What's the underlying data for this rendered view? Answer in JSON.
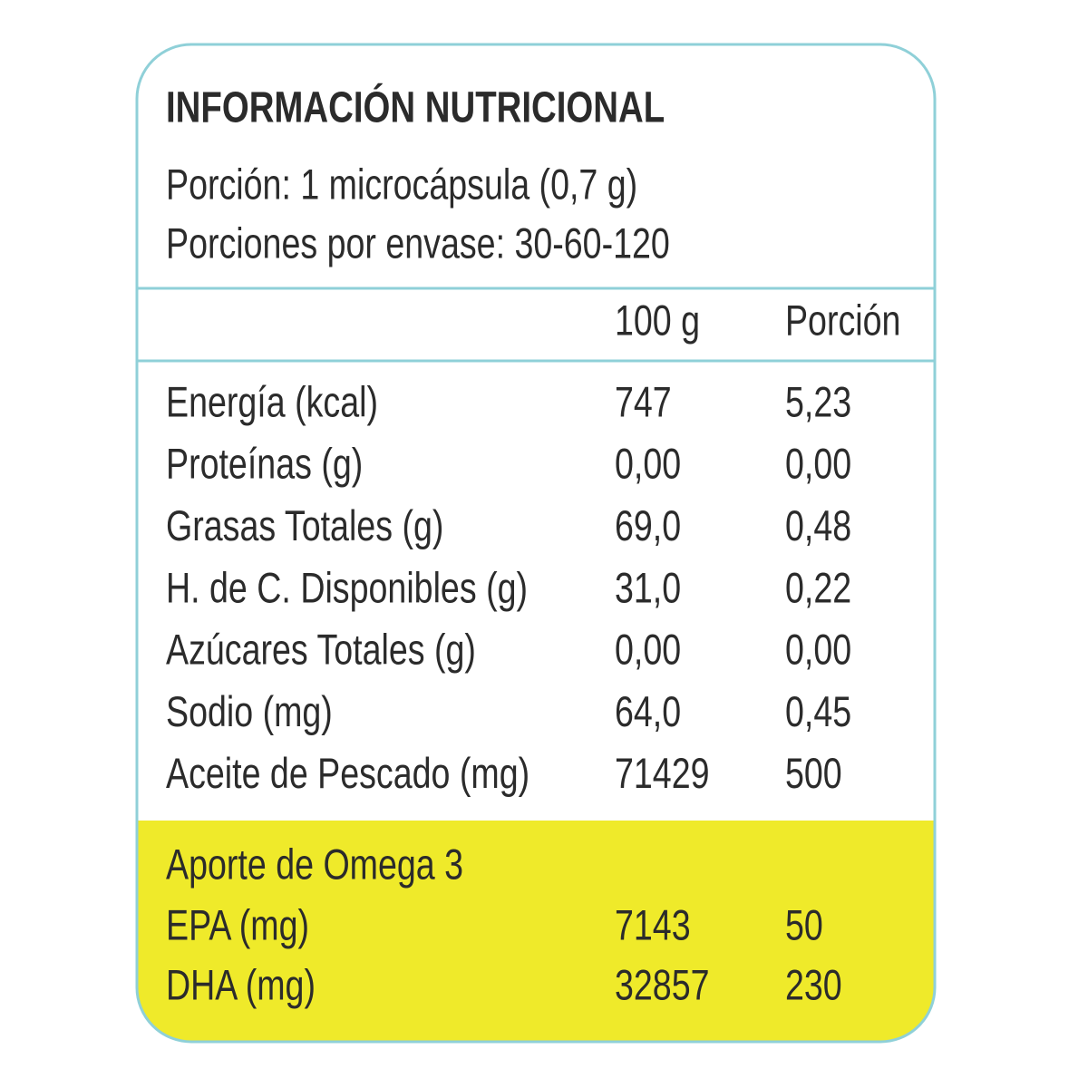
{
  "header": {
    "title": "INFORMACIÓN NUTRICIONAL",
    "serving": "Porción: 1 microcápsula (0,7 g)",
    "servings_per_container": "Porciones por envase: 30-60-120"
  },
  "table": {
    "columns": [
      "100 g",
      "Porción"
    ],
    "rows": [
      [
        "Energía (kcal)",
        "747",
        "5,23"
      ],
      [
        "Proteínas (g)",
        "0,00",
        "0,00"
      ],
      [
        "Grasas Totales (g)",
        "69,0",
        "0,48"
      ],
      [
        "H. de C. Disponibles (g)",
        "31,0",
        "0,22"
      ],
      [
        "Azúcares Totales (g)",
        "0,00",
        "0,00"
      ],
      [
        "Sodio (mg)",
        "64,0",
        "0,45"
      ],
      [
        "Aceite de Pescado (mg)",
        "71429",
        "500"
      ]
    ]
  },
  "omega": {
    "title": "Aporte de Omega 3",
    "rows": [
      [
        "EPA (mg)",
        "7143",
        "50"
      ],
      [
        "DHA (mg)",
        "32857",
        "230"
      ]
    ]
  }
}
